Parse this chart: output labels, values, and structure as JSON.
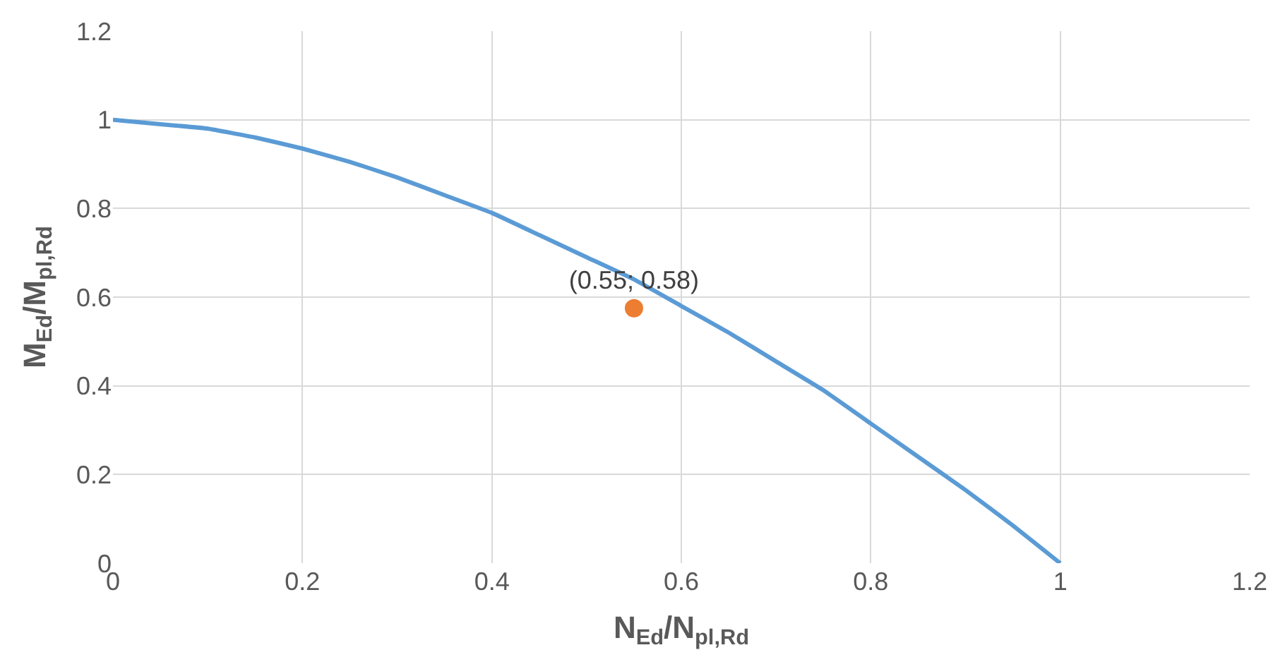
{
  "chart_data": {
    "type": "line",
    "xlabel": "N$_{Ed}$/N$_{pl,Rd}$",
    "ylabel": "M$_{Ed}$/M$_{pl,Rd}$",
    "xlim": [
      0,
      1.2
    ],
    "xticks": [
      0,
      0.2,
      0.4,
      0.6,
      0.8,
      1,
      1.2
    ],
    "ylim": [
      0,
      1.2
    ],
    "yticks": [
      0,
      0.2,
      0.4,
      0.6,
      0.8,
      1,
      1.2
    ],
    "grid": true,
    "series": [
      {
        "color": "#5b9bd5",
        "x": [
          0,
          0.05,
          0.1,
          0.15,
          0.2,
          0.25,
          0.3,
          0.35,
          0.4,
          0.45,
          0.5,
          0.55,
          0.6,
          0.65,
          0.7,
          0.75,
          0.8,
          0.85,
          0.9,
          0.95,
          1
        ],
        "values": [
          1,
          0.99,
          0.98,
          0.96,
          0.935,
          0.905,
          0.87,
          0.83,
          0.79,
          0.74,
          0.69,
          0.64,
          0.58,
          0.52,
          0.455,
          0.39,
          0.315,
          0.24,
          0.165,
          0.085,
          0
        ]
      },
      {
        "type": "scatter",
        "color": "#ed7d31",
        "x": [
          0.55
        ],
        "values": [
          0.575
        ],
        "value_labels": [
          "(0.55; 0.58)"
        ]
      }
    ]
  }
}
